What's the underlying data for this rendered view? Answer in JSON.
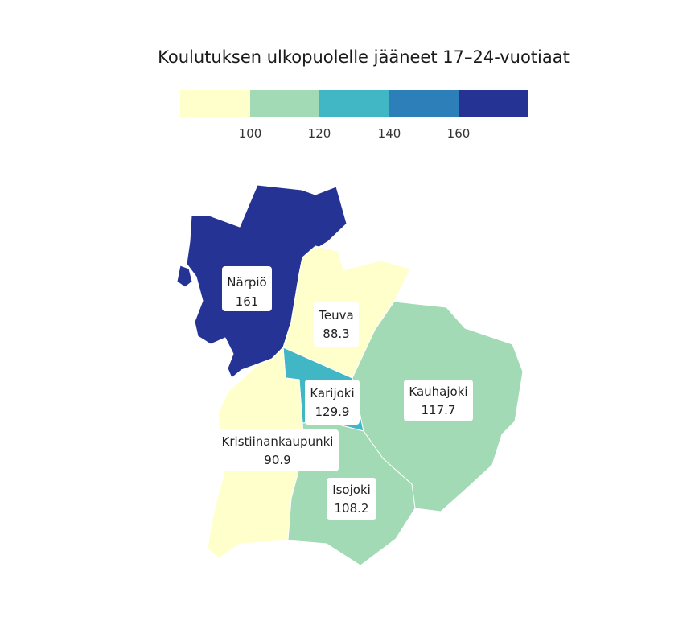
{
  "title": "Koulutuksen ulkopuolelle jääneet 17–24-vuotiaat",
  "legend": {
    "bins": [
      {
        "color": "#ffffcc"
      },
      {
        "color": "#a1dab4"
      },
      {
        "color": "#41b6c4"
      },
      {
        "color": "#2c7fb8"
      },
      {
        "color": "#253494"
      }
    ],
    "ticks": [
      "100",
      "120",
      "140",
      "160"
    ]
  },
  "chart_data": {
    "type": "choropleth",
    "title": "Koulutuksen ulkopuolelle jääneet 17–24-vuotiaat",
    "breaks": [
      100,
      120,
      140,
      160
    ],
    "regions": [
      {
        "name": "Närpiö",
        "value": "161",
        "color": "#253494"
      },
      {
        "name": "Teuva",
        "value": "88.3",
        "color": "#ffffcc"
      },
      {
        "name": "Karijoki",
        "value": "129.9",
        "color": "#41b6c4"
      },
      {
        "name": "Kauhajoki",
        "value": "117.7",
        "color": "#a1dab4"
      },
      {
        "name": "Kristiinankaupunki",
        "value": "90.9",
        "color": "#ffffcc"
      },
      {
        "name": "Isojoki",
        "value": "108.2",
        "color": "#a1dab4"
      }
    ]
  }
}
